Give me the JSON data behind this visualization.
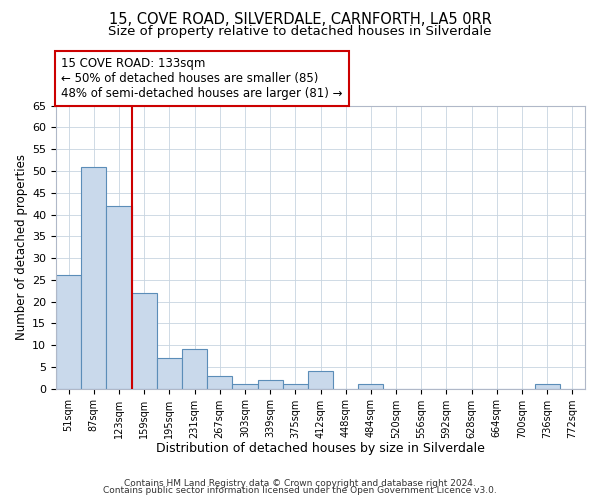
{
  "title": "15, COVE ROAD, SILVERDALE, CARNFORTH, LA5 0RR",
  "subtitle": "Size of property relative to detached houses in Silverdale",
  "xlabel": "Distribution of detached houses by size in Silverdale",
  "ylabel": "Number of detached properties",
  "bar_labels": [
    "51sqm",
    "87sqm",
    "123sqm",
    "159sqm",
    "195sqm",
    "231sqm",
    "267sqm",
    "303sqm",
    "339sqm",
    "375sqm",
    "412sqm",
    "448sqm",
    "484sqm",
    "520sqm",
    "556sqm",
    "592sqm",
    "628sqm",
    "664sqm",
    "700sqm",
    "736sqm",
    "772sqm"
  ],
  "bar_values": [
    26,
    51,
    42,
    22,
    7,
    9,
    3,
    1,
    2,
    1,
    4,
    0,
    1,
    0,
    0,
    0,
    0,
    0,
    0,
    1,
    0
  ],
  "bar_color": "#c9d9eb",
  "bar_edgecolor": "#5b8db8",
  "vline_color": "#cc0000",
  "vline_bar_index": 2,
  "annotation_title": "15 COVE ROAD: 133sqm",
  "annotation_line1": "← 50% of detached houses are smaller (85)",
  "annotation_line2": "48% of semi-detached houses are larger (81) →",
  "annotation_box_color": "#ffffff",
  "annotation_box_edgecolor": "#cc0000",
  "ylim": [
    0,
    65
  ],
  "yticks": [
    0,
    5,
    10,
    15,
    20,
    25,
    30,
    35,
    40,
    45,
    50,
    55,
    60,
    65
  ],
  "footnote1": "Contains HM Land Registry data © Crown copyright and database right 2024.",
  "footnote2": "Contains public sector information licensed under the Open Government Licence v3.0.",
  "bg_color": "#ffffff",
  "plot_bg_color": "#ffffff",
  "grid_color": "#c8d4e0",
  "title_fontsize": 10.5,
  "subtitle_fontsize": 9.5,
  "xlabel_fontsize": 9,
  "ylabel_fontsize": 8.5,
  "footnote_fontsize": 6.5
}
